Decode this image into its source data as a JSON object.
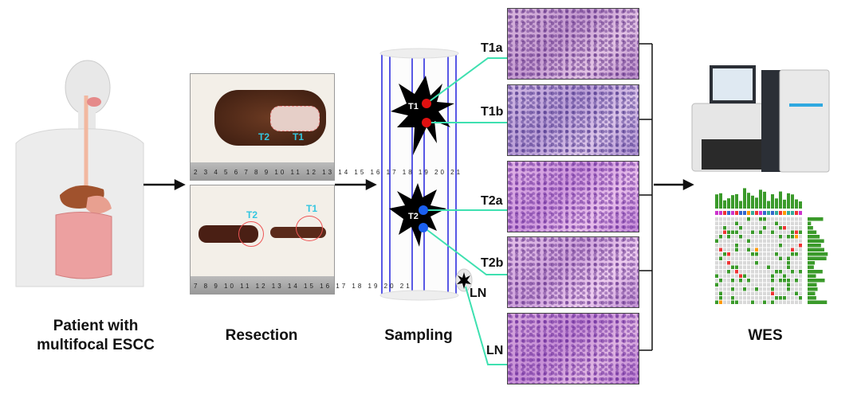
{
  "steps": {
    "patient": [
      "Patient with",
      "multifocal ESCC"
    ],
    "resection": "Resection",
    "sampling": "Sampling",
    "wes": "WES"
  },
  "photos": {
    "top": {
      "t1": "T1",
      "t2": "T2",
      "ruler": "2 3 4 5 6 7 8 9 10 11 12 13 14 15 16 17 18 19 20 21"
    },
    "bottom": {
      "t1": "T1",
      "t2": "T2",
      "ruler": "7 8 9 10 11 12 13 14 15 16 17 18 19 20 21"
    }
  },
  "tumors": {
    "t1": "T1",
    "t2": "T2"
  },
  "samples": [
    "T1a",
    "T1b",
    "T2a",
    "T2b",
    "LN"
  ],
  "lymph_node_label": "LN",
  "colors": {
    "t1_dot": "#e01010",
    "t2_dot": "#1a5ff0",
    "connector": "#3ee0b0",
    "vessel": "#2222dd",
    "annotation": "#33c6e0"
  }
}
